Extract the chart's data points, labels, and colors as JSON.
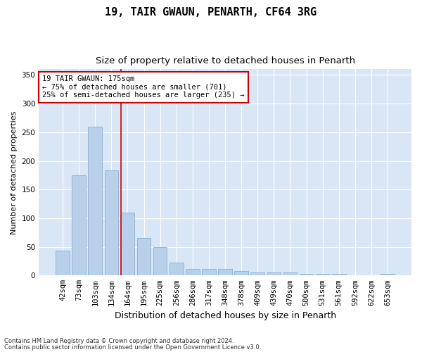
{
  "title1": "19, TAIR GWAUN, PENARTH, CF64 3RG",
  "title2": "Size of property relative to detached houses in Penarth",
  "xlabel": "Distribution of detached houses by size in Penarth",
  "ylabel": "Number of detached properties",
  "categories": [
    "42sqm",
    "73sqm",
    "103sqm",
    "134sqm",
    "164sqm",
    "195sqm",
    "225sqm",
    "256sqm",
    "286sqm",
    "317sqm",
    "348sqm",
    "378sqm",
    "409sqm",
    "439sqm",
    "470sqm",
    "500sqm",
    "531sqm",
    "561sqm",
    "592sqm",
    "622sqm",
    "653sqm"
  ],
  "values": [
    43,
    175,
    260,
    183,
    110,
    65,
    50,
    23,
    12,
    12,
    12,
    8,
    5,
    5,
    5,
    3,
    3,
    3,
    0,
    0,
    3
  ],
  "bar_color": "#b8d0ea",
  "bar_edgecolor": "#8ab0d0",
  "vline_color": "#cc0000",
  "annotation_text": "19 TAIR GWAUN: 175sqm\n← 75% of detached houses are smaller (701)\n25% of semi-detached houses are larger (235) →",
  "annotation_box_color": "#ffffff",
  "annotation_box_edgecolor": "#cc0000",
  "ylim": [
    0,
    360
  ],
  "yticks": [
    0,
    50,
    100,
    150,
    200,
    250,
    300,
    350
  ],
  "plot_bg_color": "#d9e6f5",
  "footer1": "Contains HM Land Registry data © Crown copyright and database right 2024.",
  "footer2": "Contains public sector information licensed under the Open Government Licence v3.0.",
  "title1_fontsize": 11,
  "title2_fontsize": 9.5,
  "xlabel_fontsize": 9,
  "ylabel_fontsize": 8,
  "tick_fontsize": 7.5,
  "footer_fontsize": 6,
  "ann_fontsize": 7.5
}
